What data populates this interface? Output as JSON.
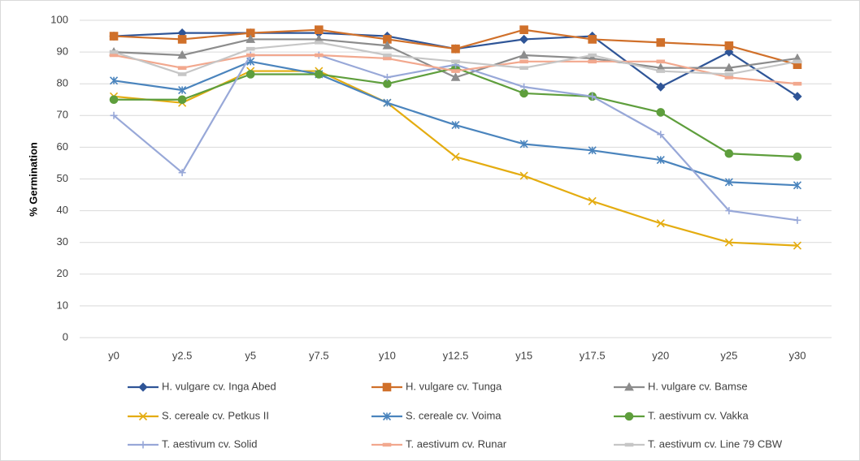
{
  "chart_data": {
    "type": "line",
    "y_label": "% Germination",
    "categories": [
      "y0",
      "y2.5",
      "y5",
      "y7.5",
      "y10",
      "y12.5",
      "y15",
      "y17.5",
      "y20",
      "y25",
      "y30"
    ],
    "ylim": [
      0,
      100
    ],
    "yticks": [
      0,
      10,
      20,
      30,
      40,
      50,
      60,
      70,
      80,
      90,
      100
    ],
    "grid": true,
    "legend": "bottom",
    "series": [
      {
        "name": "H. vulgare cv. Inga Abed",
        "color": "#2f5597",
        "marker": "diamond",
        "values": [
          95,
          96,
          96,
          96,
          95,
          91,
          94,
          95,
          79,
          90,
          76
        ]
      },
      {
        "name": "H. vulgare cv. Tunga",
        "color": "#d0702a",
        "marker": "square",
        "values": [
          95,
          94,
          96,
          97,
          94,
          91,
          97,
          94,
          93,
          92,
          86
        ]
      },
      {
        "name": "H. vulgare cv. Bamse",
        "color": "#8c8c8c",
        "marker": "triangle",
        "values": [
          90,
          89,
          94,
          94,
          92,
          82,
          89,
          88,
          85,
          85,
          88
        ]
      },
      {
        "name": "S. cereale cv. Petkus II",
        "color": "#e4ac10",
        "marker": "x",
        "values": [
          76,
          74,
          84,
          84,
          74,
          57,
          51,
          43,
          36,
          30,
          29
        ]
      },
      {
        "name": "S. cereale cv. Voima",
        "color": "#4a84bd",
        "marker": "star",
        "values": [
          81,
          78,
          87,
          83,
          74,
          67,
          61,
          59,
          56,
          49,
          48
        ]
      },
      {
        "name": "T. aestivum cv. Vakka",
        "color": "#5e9e3c",
        "marker": "circle",
        "values": [
          75,
          75,
          83,
          83,
          80,
          85,
          77,
          76,
          71,
          58,
          57
        ]
      },
      {
        "name": "T. aestivum cv. Solid",
        "color": "#98a8d8",
        "marker": "plus",
        "values": [
          70,
          52,
          89,
          89,
          82,
          86,
          79,
          76,
          64,
          40,
          37
        ]
      },
      {
        "name": "T. aestivum cv. Runar",
        "color": "#f2a88e",
        "marker": "dash",
        "values": [
          89,
          85,
          89,
          89,
          88,
          84,
          87,
          87,
          87,
          82,
          80
        ]
      },
      {
        "name": "T. aestivum cv. Line 79 CBW",
        "color": "#c6c6c6",
        "marker": "dash",
        "values": [
          90,
          83,
          91,
          93,
          89,
          87,
          85,
          89,
          84,
          83,
          87
        ]
      }
    ]
  }
}
